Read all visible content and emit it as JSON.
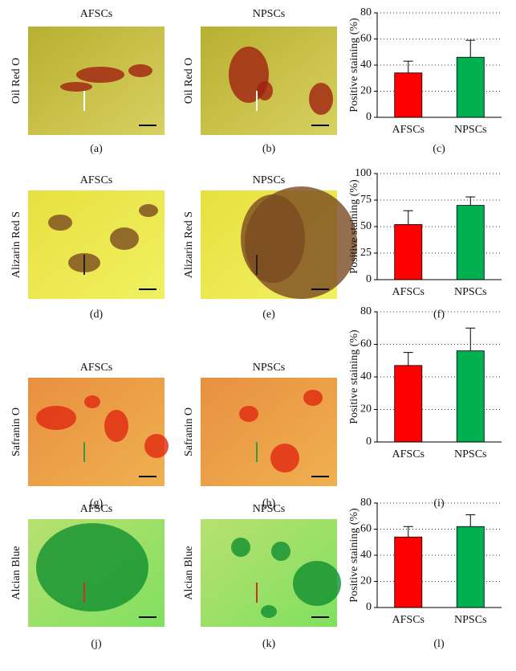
{
  "rows": [
    {
      "image_titles": [
        "AFSCs",
        "NPSCs"
      ],
      "stain": "Oil Red O",
      "panel_labels": [
        "(a)",
        "(b)",
        "(c)"
      ]
    },
    {
      "image_titles": [
        "AFSCs",
        "NPSCs"
      ],
      "stain": "Alizarin Red S",
      "panel_labels": [
        "(d)",
        "(e)",
        "(f)"
      ]
    },
    {
      "image_titles": [
        "AFSCs",
        "NPSCs"
      ],
      "stain": "Safranin O",
      "panel_labels": [
        "(g)",
        "(h)",
        "(i)"
      ]
    },
    {
      "image_titles": [
        "AFSCs",
        "NPSCs"
      ],
      "stain": "Alcian Blue",
      "panel_labels": [
        "(j)",
        "(k)",
        "(l)"
      ]
    }
  ],
  "chart_data": [
    {
      "type": "bar",
      "ylabel": "Positive staining (%)",
      "categories": [
        "AFSCs",
        "NPSCs"
      ],
      "values": [
        34,
        46
      ],
      "errors": [
        9,
        13
      ],
      "colors": [
        "#ff0000",
        "#00b050"
      ],
      "ylim": [
        0,
        80
      ],
      "yticks": [
        0,
        20,
        40,
        60,
        80
      ],
      "grid": true
    },
    {
      "type": "bar",
      "ylabel": "Positive staining (%)",
      "categories": [
        "AFSCs",
        "NPSCs"
      ],
      "values": [
        52,
        70
      ],
      "errors": [
        13,
        8
      ],
      "colors": [
        "#ff0000",
        "#00b050"
      ],
      "ylim": [
        0,
        100
      ],
      "yticks": [
        0,
        25,
        50,
        75,
        100
      ],
      "grid": true
    },
    {
      "type": "bar",
      "ylabel": "Positive staining (%)",
      "categories": [
        "AFSCs",
        "NPSCs"
      ],
      "values": [
        47,
        56
      ],
      "errors": [
        8,
        14
      ],
      "colors": [
        "#ff0000",
        "#00b050"
      ],
      "ylim": [
        0,
        80
      ],
      "yticks": [
        0,
        20,
        40,
        60,
        80
      ],
      "grid": true
    },
    {
      "type": "bar",
      "ylabel": "Positive staining (%)",
      "categories": [
        "AFSCs",
        "NPSCs"
      ],
      "values": [
        54,
        62
      ],
      "errors": [
        8,
        9
      ],
      "colors": [
        "#ff0000",
        "#00b050"
      ],
      "ylim": [
        0,
        80
      ],
      "yticks": [
        0,
        20,
        40,
        60,
        80
      ],
      "grid": true
    }
  ]
}
